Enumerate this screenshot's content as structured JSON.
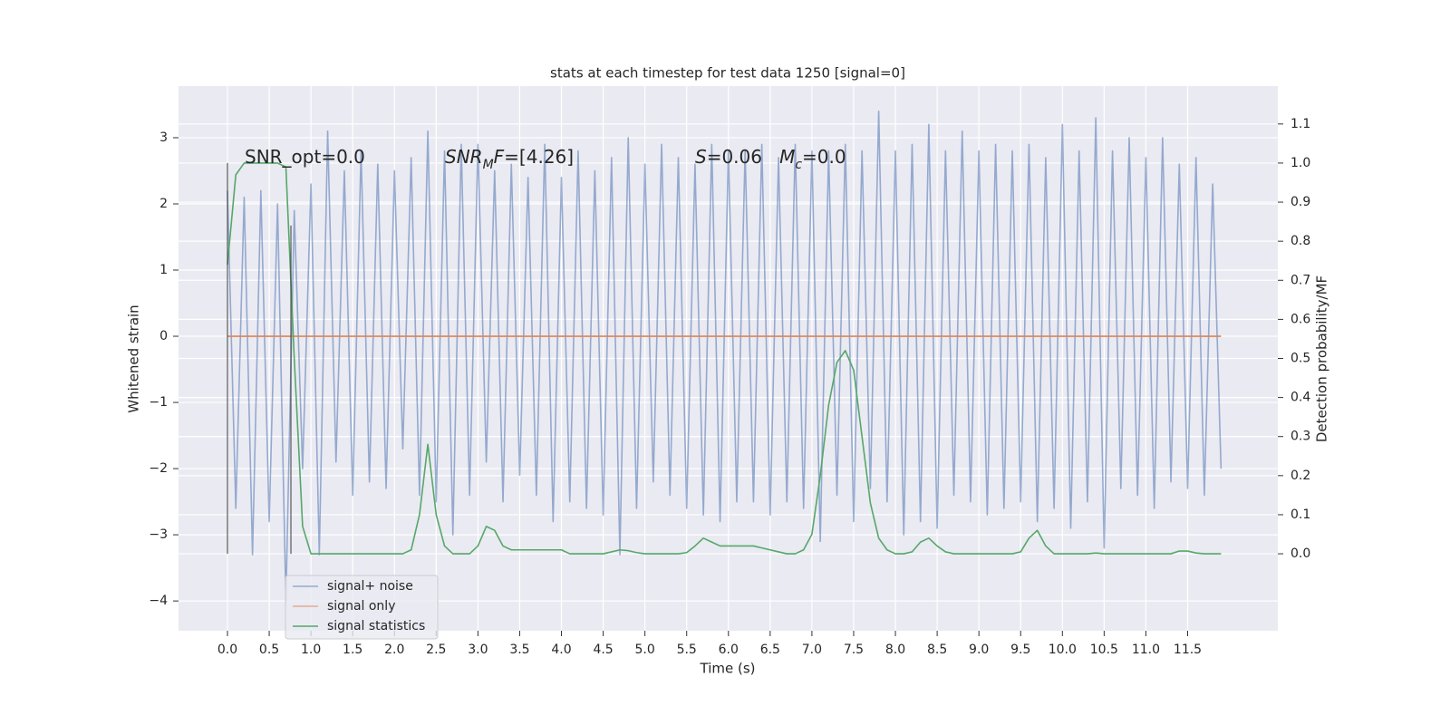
{
  "chart_data": {
    "type": "line",
    "title": "stats at each timestep for test data 1250 [signal=0]",
    "xlabel": "Time (s)",
    "ylabel": "Whitened strain",
    "y2label": "Detection probability/MF",
    "xlim": [
      -0.586,
      12.58
    ],
    "ylim": [
      -4.45,
      3.78
    ],
    "y2lim": [
      -0.197,
      1.197
    ],
    "xticks": [
      {
        "value": 0,
        "label": "0.0"
      },
      0.5,
      {
        "value": 1,
        "label": "1.0"
      },
      1.5,
      {
        "value": 2,
        "label": "2.0"
      },
      2.5,
      {
        "value": 3,
        "label": "3.0"
      },
      3.5,
      {
        "value": 4,
        "label": "4.0"
      },
      4.5,
      {
        "value": 5,
        "label": "5.0"
      },
      5.5,
      {
        "value": 6,
        "label": "6.0"
      },
      6.5,
      {
        "value": 7,
        "label": "7.0"
      },
      7.5,
      {
        "value": 8,
        "label": "8.0"
      },
      8.5,
      {
        "value": 9,
        "label": "9.0"
      },
      9.5,
      {
        "value": 10,
        "label": "10.0"
      },
      10.5,
      {
        "value": 11,
        "label": "11.0"
      },
      11.5
    ],
    "yticks": [
      {
        "value": -4,
        "label": "−4"
      },
      {
        "value": -3,
        "label": "−3"
      },
      {
        "value": -2,
        "label": "−2"
      },
      {
        "value": -1,
        "label": "−1"
      },
      0,
      1,
      2,
      3
    ],
    "y2ticks": [
      {
        "value": 0,
        "label": "0.0"
      },
      0.1,
      0.2,
      0.3,
      0.4,
      0.5,
      0.6,
      0.7,
      0.8,
      0.9,
      {
        "value": 1,
        "label": "1.0"
      },
      1.1
    ],
    "grid": true,
    "legend": "lower left",
    "x": [
      0,
      0.1,
      0.2,
      0.3,
      0.4,
      0.5,
      0.6,
      0.7,
      0.8,
      0.9,
      1,
      1.1,
      1.2,
      1.3,
      1.4,
      1.5,
      1.6,
      1.7,
      1.8,
      1.9,
      2,
      2.1,
      2.2,
      2.3,
      2.4,
      2.5,
      2.6,
      2.7,
      2.8,
      2.9,
      3,
      3.1,
      3.2,
      3.3,
      3.4,
      3.5,
      3.6,
      3.7,
      3.8,
      3.9,
      4,
      4.1,
      4.2,
      4.3,
      4.4,
      4.5,
      4.6,
      4.7,
      4.8,
      4.9,
      5,
      5.1,
      5.2,
      5.3,
      5.4,
      5.5,
      5.6,
      5.7,
      5.8,
      5.9,
      6,
      6.1,
      6.2,
      6.3,
      6.4,
      6.5,
      6.6,
      6.7,
      6.8,
      6.9,
      7,
      7.1,
      7.2,
      7.3,
      7.4,
      7.5,
      7.6,
      7.7,
      7.8,
      7.9,
      8,
      8.1,
      8.2,
      8.3,
      8.4,
      8.5,
      8.6,
      8.7,
      8.8,
      8.9,
      9,
      9.1,
      9.2,
      9.3,
      9.4,
      9.5,
      9.6,
      9.7,
      9.8,
      9.9,
      10,
      10.1,
      10.2,
      10.3,
      10.4,
      10.5,
      10.6,
      10.7,
      10.8,
      10.9,
      11,
      11.1,
      11.2,
      11.3,
      11.4,
      11.5,
      11.6,
      11.7,
      11.8,
      11.9
    ],
    "series": [
      {
        "name": "signal+ noise",
        "color": "#4c72b0",
        "values": [
          2.2,
          -2.6,
          2.1,
          -3.3,
          2.2,
          -2.8,
          2.0,
          -4.0,
          1.9,
          -2.0,
          2.3,
          -3.3,
          3.1,
          -1.9,
          2.5,
          -2.4,
          2.8,
          -2.2,
          2.6,
          -2.3,
          2.5,
          -1.7,
          2.7,
          -2.4,
          3.1,
          -2.5,
          2.8,
          -3.0,
          2.9,
          -2.4,
          2.9,
          -1.9,
          2.5,
          -2.5,
          2.6,
          -2.1,
          2.4,
          -2.4,
          2.9,
          -2.8,
          2.4,
          -2.5,
          2.8,
          -2.6,
          2.5,
          -2.7,
          2.7,
          -3.3,
          3.0,
          -2.6,
          2.6,
          -2.2,
          2.9,
          -2.4,
          2.7,
          -2.6,
          2.6,
          -2.7,
          2.9,
          -2.8,
          2.8,
          -2.5,
          2.8,
          -2.5,
          2.9,
          -2.7,
          2.7,
          -2.5,
          2.9,
          -2.6,
          2.8,
          -3.1,
          2.8,
          -2.4,
          2.9,
          -2.8,
          2.8,
          -2.3,
          3.4,
          -2.5,
          2.8,
          -3.0,
          2.9,
          -2.8,
          3.2,
          -2.9,
          2.8,
          -2.4,
          3.1,
          -2.5,
          2.8,
          -2.7,
          2.9,
          -2.6,
          2.8,
          -2.5,
          2.9,
          -2.8,
          2.7,
          -2.6,
          3.2,
          -2.9,
          2.8,
          -2.5,
          3.3,
          -3.2,
          2.8,
          -2.3,
          3.0,
          -2.4,
          2.7,
          -2.6,
          3.0,
          -2.2,
          2.6,
          -2.3,
          2.7,
          -2.4,
          2.3,
          -2.0
        ]
      },
      {
        "name": "signal only",
        "color": "#dd8452",
        "x": [
          0,
          11.9
        ],
        "values": [
          0,
          0
        ]
      },
      {
        "name": "signal statistics",
        "color": "#55a868",
        "axis": "y2",
        "values": [
          0.74,
          0.97,
          1.0,
          1.0,
          1.0,
          1.0,
          1.0,
          0.99,
          0.5,
          0.07,
          0,
          0,
          0,
          0,
          0,
          0,
          0,
          0,
          0,
          0,
          0,
          0,
          0.01,
          0.1,
          0.28,
          0.1,
          0.02,
          0,
          0,
          0,
          0.02,
          0.07,
          0.06,
          0.02,
          0.01,
          0.01,
          0.01,
          0.01,
          0.01,
          0.01,
          0.01,
          0,
          0,
          0,
          0,
          0,
          0.005,
          0.01,
          0.008,
          0.003,
          0,
          0,
          0,
          0,
          0,
          0.003,
          0.02,
          0.04,
          0.03,
          0.02,
          0.02,
          0.02,
          0.02,
          0.02,
          0.015,
          0.01,
          0.005,
          0,
          0,
          0.01,
          0.05,
          0.2,
          0.38,
          0.49,
          0.52,
          0.47,
          0.3,
          0.13,
          0.04,
          0.01,
          0,
          0,
          0.005,
          0.03,
          0.04,
          0.02,
          0.005,
          0,
          0,
          0,
          0,
          0,
          0,
          0,
          0,
          0.005,
          0.04,
          0.06,
          0.02,
          0,
          0,
          0,
          0,
          0,
          0.002,
          0,
          0,
          0,
          0,
          0,
          0,
          0,
          0,
          0,
          0.007,
          0.007,
          0.002,
          0,
          0,
          0
        ]
      }
    ],
    "vlines": [
      {
        "x": 0,
        "ymax": 1.0
      },
      {
        "x": 0.76,
        "ymax": 0.84
      }
    ],
    "annotations": [
      {
        "parts": [
          {
            "text": "SNR_opt=0.0",
            "style": "normal"
          }
        ]
      },
      {
        "parts": [
          {
            "text": "SNR",
            "style": "italic"
          },
          {
            "text": "M",
            "style": "sub"
          },
          {
            "text": "F",
            "style": "italic"
          },
          {
            "text": "=[4.26]",
            "style": "normal"
          }
        ]
      },
      {
        "parts": [
          {
            "text": "S",
            "style": "italic"
          },
          {
            "text": "=0.06   ",
            "style": "normal"
          },
          {
            "text": "M",
            "style": "italic"
          },
          {
            "text": "c",
            "style": "sub"
          },
          {
            "text": "=0.0",
            "style": "normal"
          }
        ]
      }
    ]
  }
}
